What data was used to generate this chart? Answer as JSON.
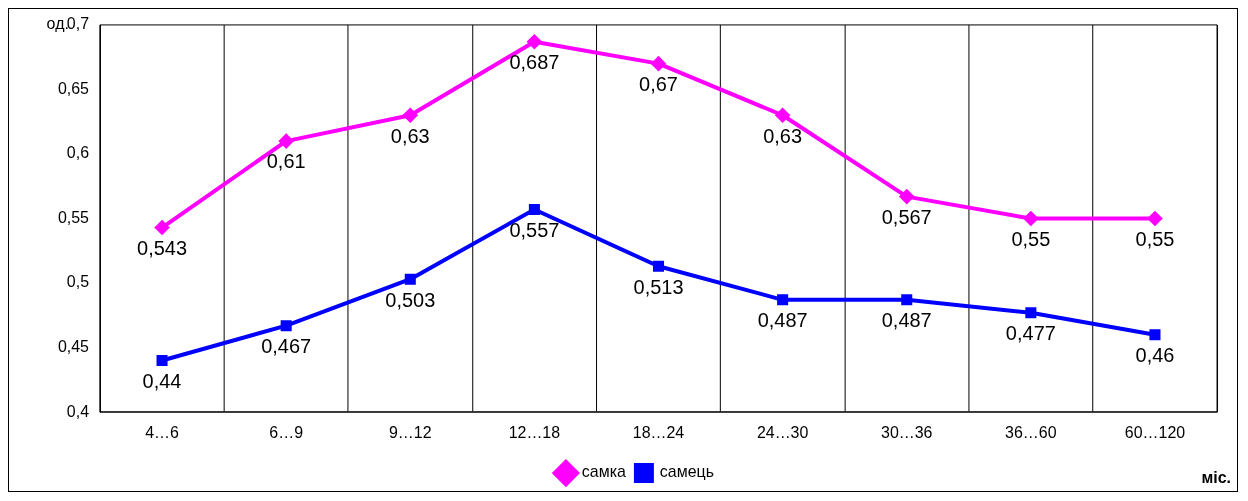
{
  "chart_data": {
    "type": "line",
    "ylabel": "од.",
    "xlabel": "міс.",
    "categories": [
      "4…6",
      "6…9",
      "9…12",
      "12…18",
      "18…24",
      "24…30",
      "30…36",
      "36…60",
      "60…120"
    ],
    "ylim": [
      0.4,
      0.7
    ],
    "yticks": [
      {
        "value": 0.4,
        "label": "0,4"
      },
      {
        "value": 0.45,
        "label": "0,45"
      },
      {
        "value": 0.5,
        "label": "0,5"
      },
      {
        "value": 0.55,
        "label": "0,55"
      },
      {
        "value": 0.6,
        "label": "0,6"
      },
      {
        "value": 0.65,
        "label": "0,65"
      },
      {
        "value": 0.7,
        "label": "0,7"
      }
    ],
    "series": [
      {
        "name": "самка",
        "color": "#ff00ff",
        "marker": "diamond",
        "values": [
          0.543,
          0.61,
          0.63,
          0.687,
          0.67,
          0.63,
          0.567,
          0.55,
          0.55
        ],
        "value_labels": [
          "0,543",
          "0,61",
          "0,63",
          "0,687",
          "0,67",
          "0,63",
          "0,567",
          "0,55",
          "0,55"
        ]
      },
      {
        "name": "самець",
        "color": "#0000ff",
        "marker": "square",
        "values": [
          0.44,
          0.467,
          0.503,
          0.557,
          0.513,
          0.487,
          0.487,
          0.477,
          0.46
        ],
        "value_labels": [
          "0,44",
          "0,467",
          "0,503",
          "0,557",
          "0,513",
          "0,487",
          "0,487",
          "0,477",
          "0,46"
        ]
      }
    ],
    "grid": "x",
    "legend": "bottom"
  }
}
